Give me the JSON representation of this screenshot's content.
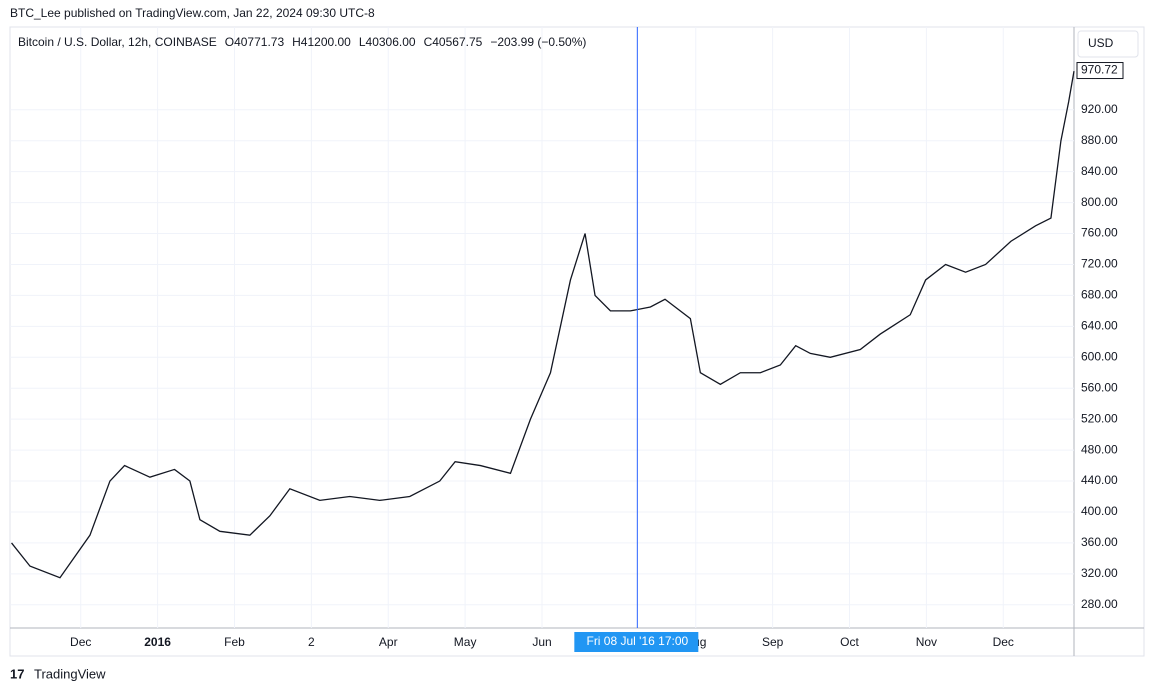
{
  "header": "BTC_Lee published on TradingView.com, Jan 22, 2024 09:30 UTC-8",
  "legend": {
    "symbol": "Bitcoin / U.S. Dollar, 12h, COINBASE",
    "open": "O40771.73",
    "high": "H41200.00",
    "low": "L40306.00",
    "close": "C40567.75",
    "change": "−203.99 (−0.50%)"
  },
  "currency": "USD",
  "footer": "TradingView",
  "chart_data": {
    "type": "line",
    "color": "#131722",
    "grid": true,
    "x": [
      0.1,
      0.34,
      0.73,
      1.12,
      1.38,
      1.57,
      1.9,
      2.22,
      2.42,
      2.55,
      2.81,
      3.2,
      3.46,
      3.72,
      4.11,
      4.5,
      4.89,
      5.28,
      5.67,
      5.87,
      6.2,
      6.59,
      6.85,
      7.11,
      7.37,
      7.56,
      7.69,
      7.89,
      8.15,
      8.41,
      8.6,
      8.93,
      9.06,
      9.32,
      9.58,
      9.84,
      10.1,
      10.3,
      10.49,
      10.75,
      11.14,
      11.4,
      11.79,
      11.99,
      12.25,
      12.51,
      12.77,
      13.1,
      13.42,
      13.62,
      13.75,
      13.85,
      13.92
    ],
    "values": [
      360,
      330,
      315,
      370,
      440,
      460,
      445,
      455,
      440,
      390,
      375,
      370,
      395,
      430,
      415,
      420,
      415,
      420,
      440,
      465,
      460,
      450,
      520,
      580,
      700,
      760,
      680,
      660,
      660,
      665,
      675,
      650,
      580,
      565,
      580,
      580,
      590,
      615,
      605,
      600,
      610,
      630,
      655,
      700,
      720,
      710,
      720,
      750,
      770,
      780,
      880,
      930,
      970
    ],
    "xlim": [
      0.08,
      13.92
    ],
    "ylim": [
      250,
      1027
    ],
    "xticks": [
      {
        "value": 1,
        "label": "Dec"
      },
      {
        "value": 2,
        "label": "2016"
      },
      {
        "value": 3,
        "label": "Feb"
      },
      {
        "value": 4,
        "label": "2"
      },
      {
        "value": 5,
        "label": "Apr"
      },
      {
        "value": 6,
        "label": "May"
      },
      {
        "value": 7,
        "label": "Jun"
      },
      {
        "value": 9,
        "label": "Aug"
      },
      {
        "value": 10,
        "label": "Sep"
      },
      {
        "value": 11,
        "label": "Oct"
      },
      {
        "value": 12,
        "label": "Nov"
      },
      {
        "value": 13,
        "label": "Dec"
      }
    ],
    "yticks": [
      {
        "value": 280,
        "label": "280.00"
      },
      {
        "value": 320,
        "label": "320.00"
      },
      {
        "value": 360,
        "label": "360.00"
      },
      {
        "value": 400,
        "label": "400.00"
      },
      {
        "value": 440,
        "label": "440.00"
      },
      {
        "value": 480,
        "label": "480.00"
      },
      {
        "value": 520,
        "label": "520.00"
      },
      {
        "value": 560,
        "label": "560.00"
      },
      {
        "value": 600,
        "label": "600.00"
      },
      {
        "value": 640,
        "label": "640.00"
      },
      {
        "value": 680,
        "label": "680.00"
      },
      {
        "value": 720,
        "label": "720.00"
      },
      {
        "value": 760,
        "label": "760.00"
      },
      {
        "value": 800,
        "label": "800.00"
      },
      {
        "value": 840,
        "label": "840.00"
      },
      {
        "value": 880,
        "label": "880.00"
      },
      {
        "value": 920,
        "label": "920.00"
      }
    ],
    "last_price": 970.72,
    "crosshair": {
      "x": 8.24,
      "label": "Fri 08 Jul '16  17:00"
    }
  }
}
